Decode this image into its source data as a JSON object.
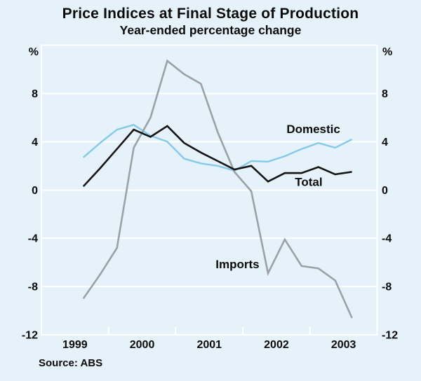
{
  "header": {
    "title": "Price Indices at Final Stage of Production",
    "subtitle": "Year-ended percentage change"
  },
  "source": "Source: ABS",
  "colors": {
    "background": "#E5F2FA",
    "grid": "#FFFFFF",
    "text": "#0B0B0B",
    "domestic_line": "#85C9E8",
    "total_line": "#141414",
    "imports_line": "#9BA1A6"
  },
  "axes": {
    "y_unit_left": "%",
    "y_unit_right": "%",
    "y_ticks": [
      8,
      4,
      0,
      -4,
      -8,
      -12
    ],
    "grid_values": [
      8,
      4,
      0,
      -4,
      -8
    ],
    "x_year_labels": [
      "1999",
      "2000",
      "2001",
      "2002",
      "2003"
    ],
    "x_tick_years": [
      2000,
      2001,
      2002,
      2003
    ]
  },
  "chart_data": {
    "type": "line",
    "title": "Price Indices at Final Stage of Production",
    "subtitle": "Year-ended percentage change",
    "ylabel": "%",
    "ylim": [
      -12,
      12
    ],
    "xlim": [
      1999,
      2004
    ],
    "grid": "horizontal-white",
    "legend_position": "inline-annotations",
    "x_quarters": [
      "1999-Q3",
      "1999-Q4",
      "2000-Q1",
      "2000-Q2",
      "2000-Q3",
      "2000-Q4",
      "2001-Q1",
      "2001-Q2",
      "2001-Q3",
      "2001-Q4",
      "2002-Q1",
      "2002-Q2",
      "2002-Q3",
      "2002-Q4",
      "2003-Q1",
      "2003-Q2",
      "2003-Q3"
    ],
    "x_years": [
      1999.625,
      1999.875,
      2000.125,
      2000.375,
      2000.625,
      2000.875,
      2001.125,
      2001.375,
      2001.625,
      2001.875,
      2002.125,
      2002.375,
      2002.625,
      2002.875,
      2003.125,
      2003.375,
      2003.625
    ],
    "series": [
      {
        "name": "Domestic",
        "color": "#85C9E8",
        "width": 2.4,
        "values": [
          2.7,
          3.9,
          5.0,
          5.4,
          4.5,
          4.0,
          2.6,
          2.2,
          2.0,
          1.6,
          2.4,
          2.35,
          2.8,
          3.4,
          3.9,
          3.5,
          4.2
        ]
      },
      {
        "name": "Total",
        "color": "#141414",
        "width": 2.6,
        "values": [
          0.3,
          1.8,
          3.4,
          5.0,
          4.4,
          5.3,
          3.9,
          3.1,
          2.4,
          1.7,
          2.0,
          0.7,
          1.4,
          1.4,
          1.9,
          1.3,
          1.5
        ]
      },
      {
        "name": "Imports",
        "color": "#9BA1A6",
        "width": 2.6,
        "values": [
          -9.0,
          -7.0,
          -4.8,
          3.5,
          6.0,
          10.7,
          9.6,
          8.8,
          4.8,
          1.5,
          -0.1,
          -6.9,
          -4.1,
          -6.3,
          -6.5,
          -7.5,
          -10.6
        ]
      }
    ],
    "annotations": [
      {
        "text": "Domestic",
        "x": 2003.05,
        "y": 5.05
      },
      {
        "text": "Total",
        "x": 2002.98,
        "y": 0.68
      },
      {
        "text": "Imports",
        "x": 2001.92,
        "y": -6.15
      }
    ]
  }
}
